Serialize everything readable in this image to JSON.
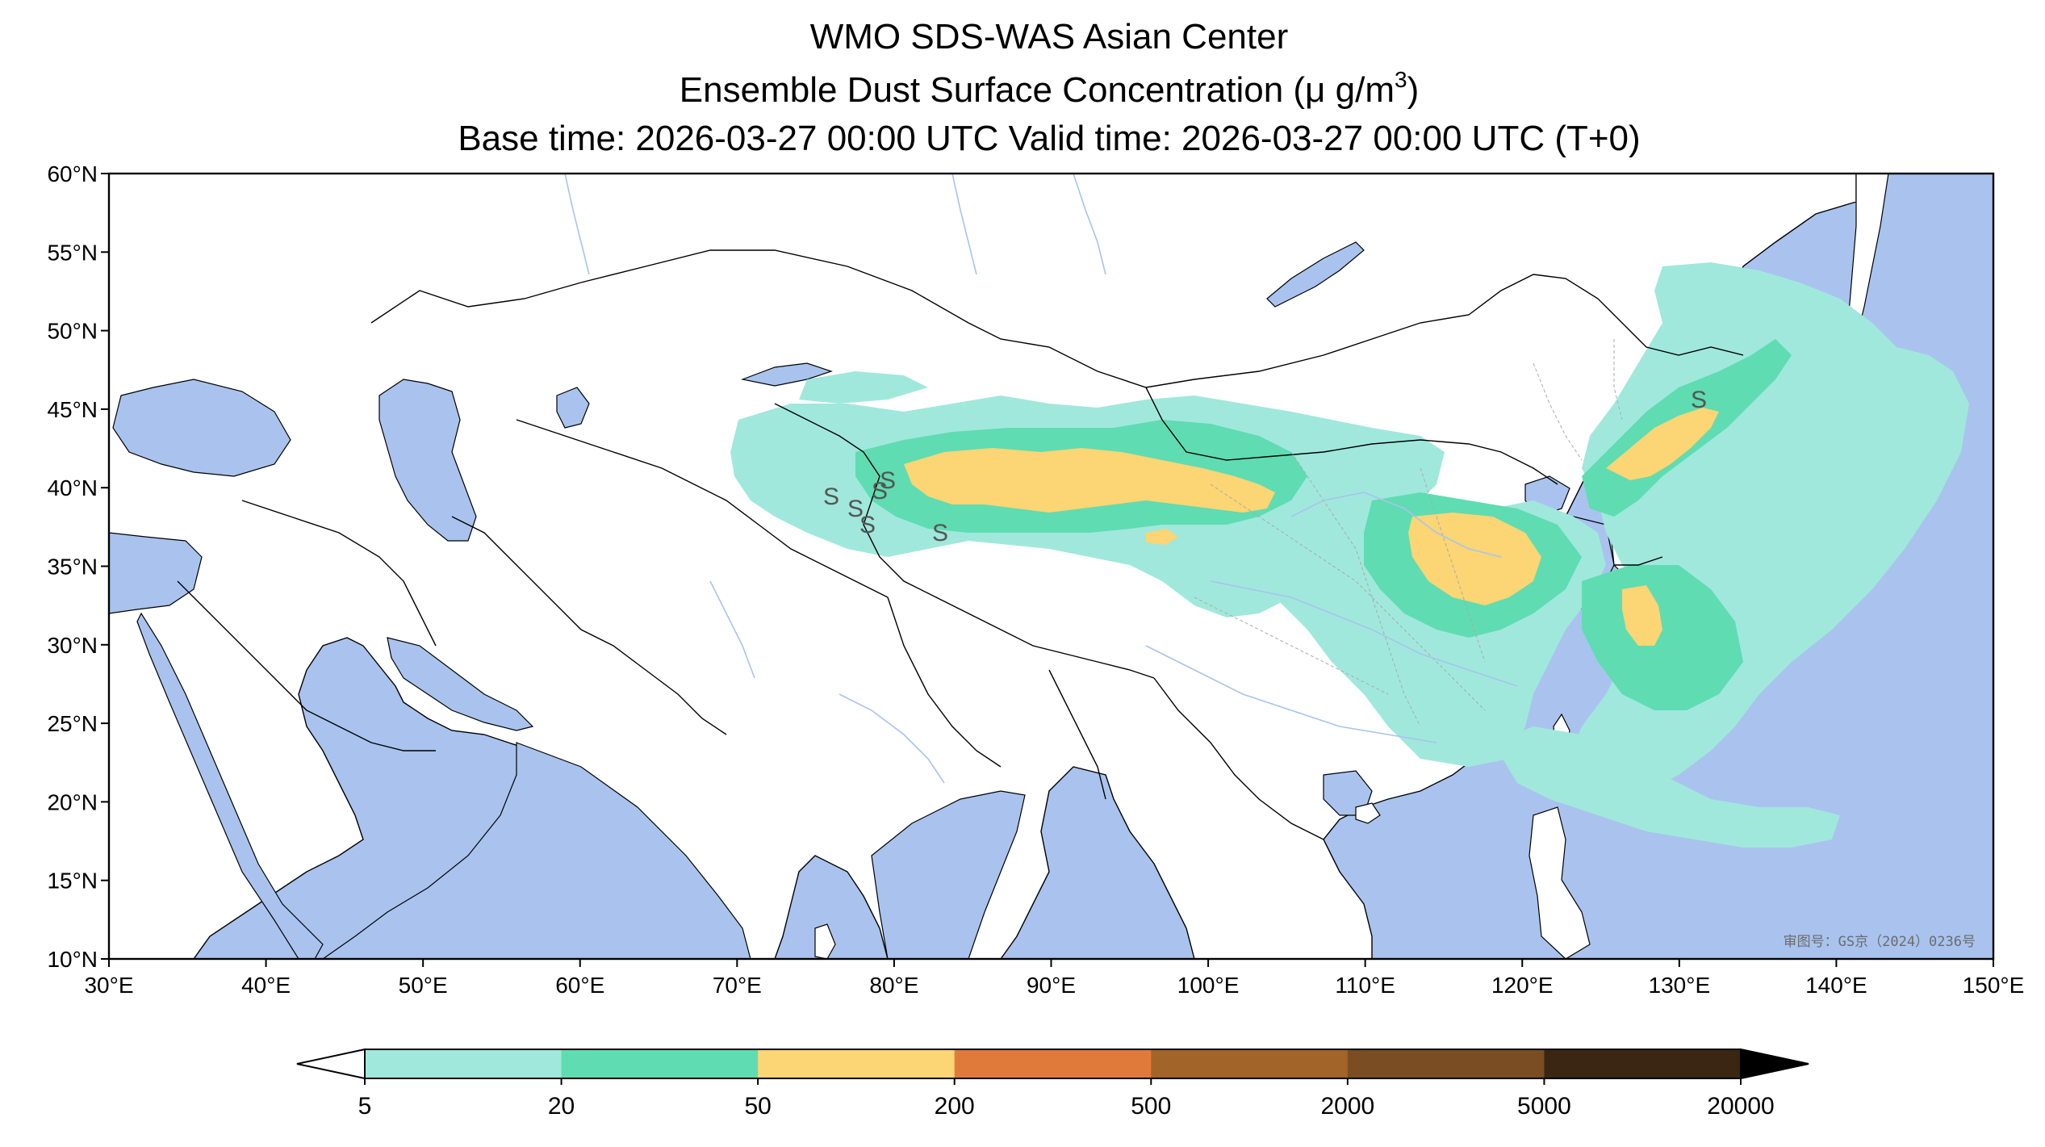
{
  "title": {
    "line1": "WMO SDS-WAS Asian Center",
    "line2_prefix": "Ensemble Dust Surface Concentration (",
    "line2_unit": "μ g/m",
    "line2_exp": "3",
    "line2_suffix": ")",
    "line3": "Base time: 2026-03-27 00:00 UTC Valid time: 2026-03-27 00:00 UTC (T+0)"
  },
  "map": {
    "lon_range": [
      30,
      150
    ],
    "lat_range": [
      10,
      60
    ],
    "lon_ticks": [
      "30°E",
      "40°E",
      "50°E",
      "60°E",
      "70°E",
      "80°E",
      "90°E",
      "100°E",
      "110°E",
      "120°E",
      "130°E",
      "140°E",
      "150°E"
    ],
    "lat_ticks": [
      "60°N",
      "55°N",
      "50°N",
      "45°N",
      "40°N",
      "35°N",
      "30°N",
      "25°N",
      "20°N",
      "15°N",
      "10°N"
    ],
    "approval_text": "审图号：GS京（2024）0236号",
    "colors": {
      "ocean": "#a9c3ee",
      "land": "#ffffff",
      "border": "#000000",
      "river": "#a9c3ee"
    }
  },
  "colorbar": {
    "labels": [
      "5",
      "20",
      "50",
      "200",
      "500",
      "2000",
      "5000",
      "20000"
    ],
    "colors": [
      "#a0e8dc",
      "#5fdcb2",
      "#fcd574",
      "#e07a3a",
      "#a26428",
      "#7a4e22",
      "#3b2614"
    ],
    "extend": "both"
  },
  "chart_data": {
    "type": "heatmap",
    "title": "WMO SDS-WAS Asian Center",
    "variable": "Ensemble Dust Surface Concentration",
    "units": "μg/m3",
    "levels": [
      5,
      20,
      50,
      200,
      500,
      2000,
      5000,
      20000
    ],
    "regions": [
      {
        "level_min": 50,
        "level_max": 200,
        "lon_center": 87,
        "lat_center": 40.5
      },
      {
        "level_min": 50,
        "level_max": 200,
        "lon_center": 115,
        "lat_center": 36
      },
      {
        "level_min": 50,
        "level_max": 200,
        "lon_center": 127,
        "lat_center": 43.5
      },
      {
        "level_min": 50,
        "level_max": 200,
        "lon_center": 128,
        "lat_center": 31.5
      }
    ]
  }
}
